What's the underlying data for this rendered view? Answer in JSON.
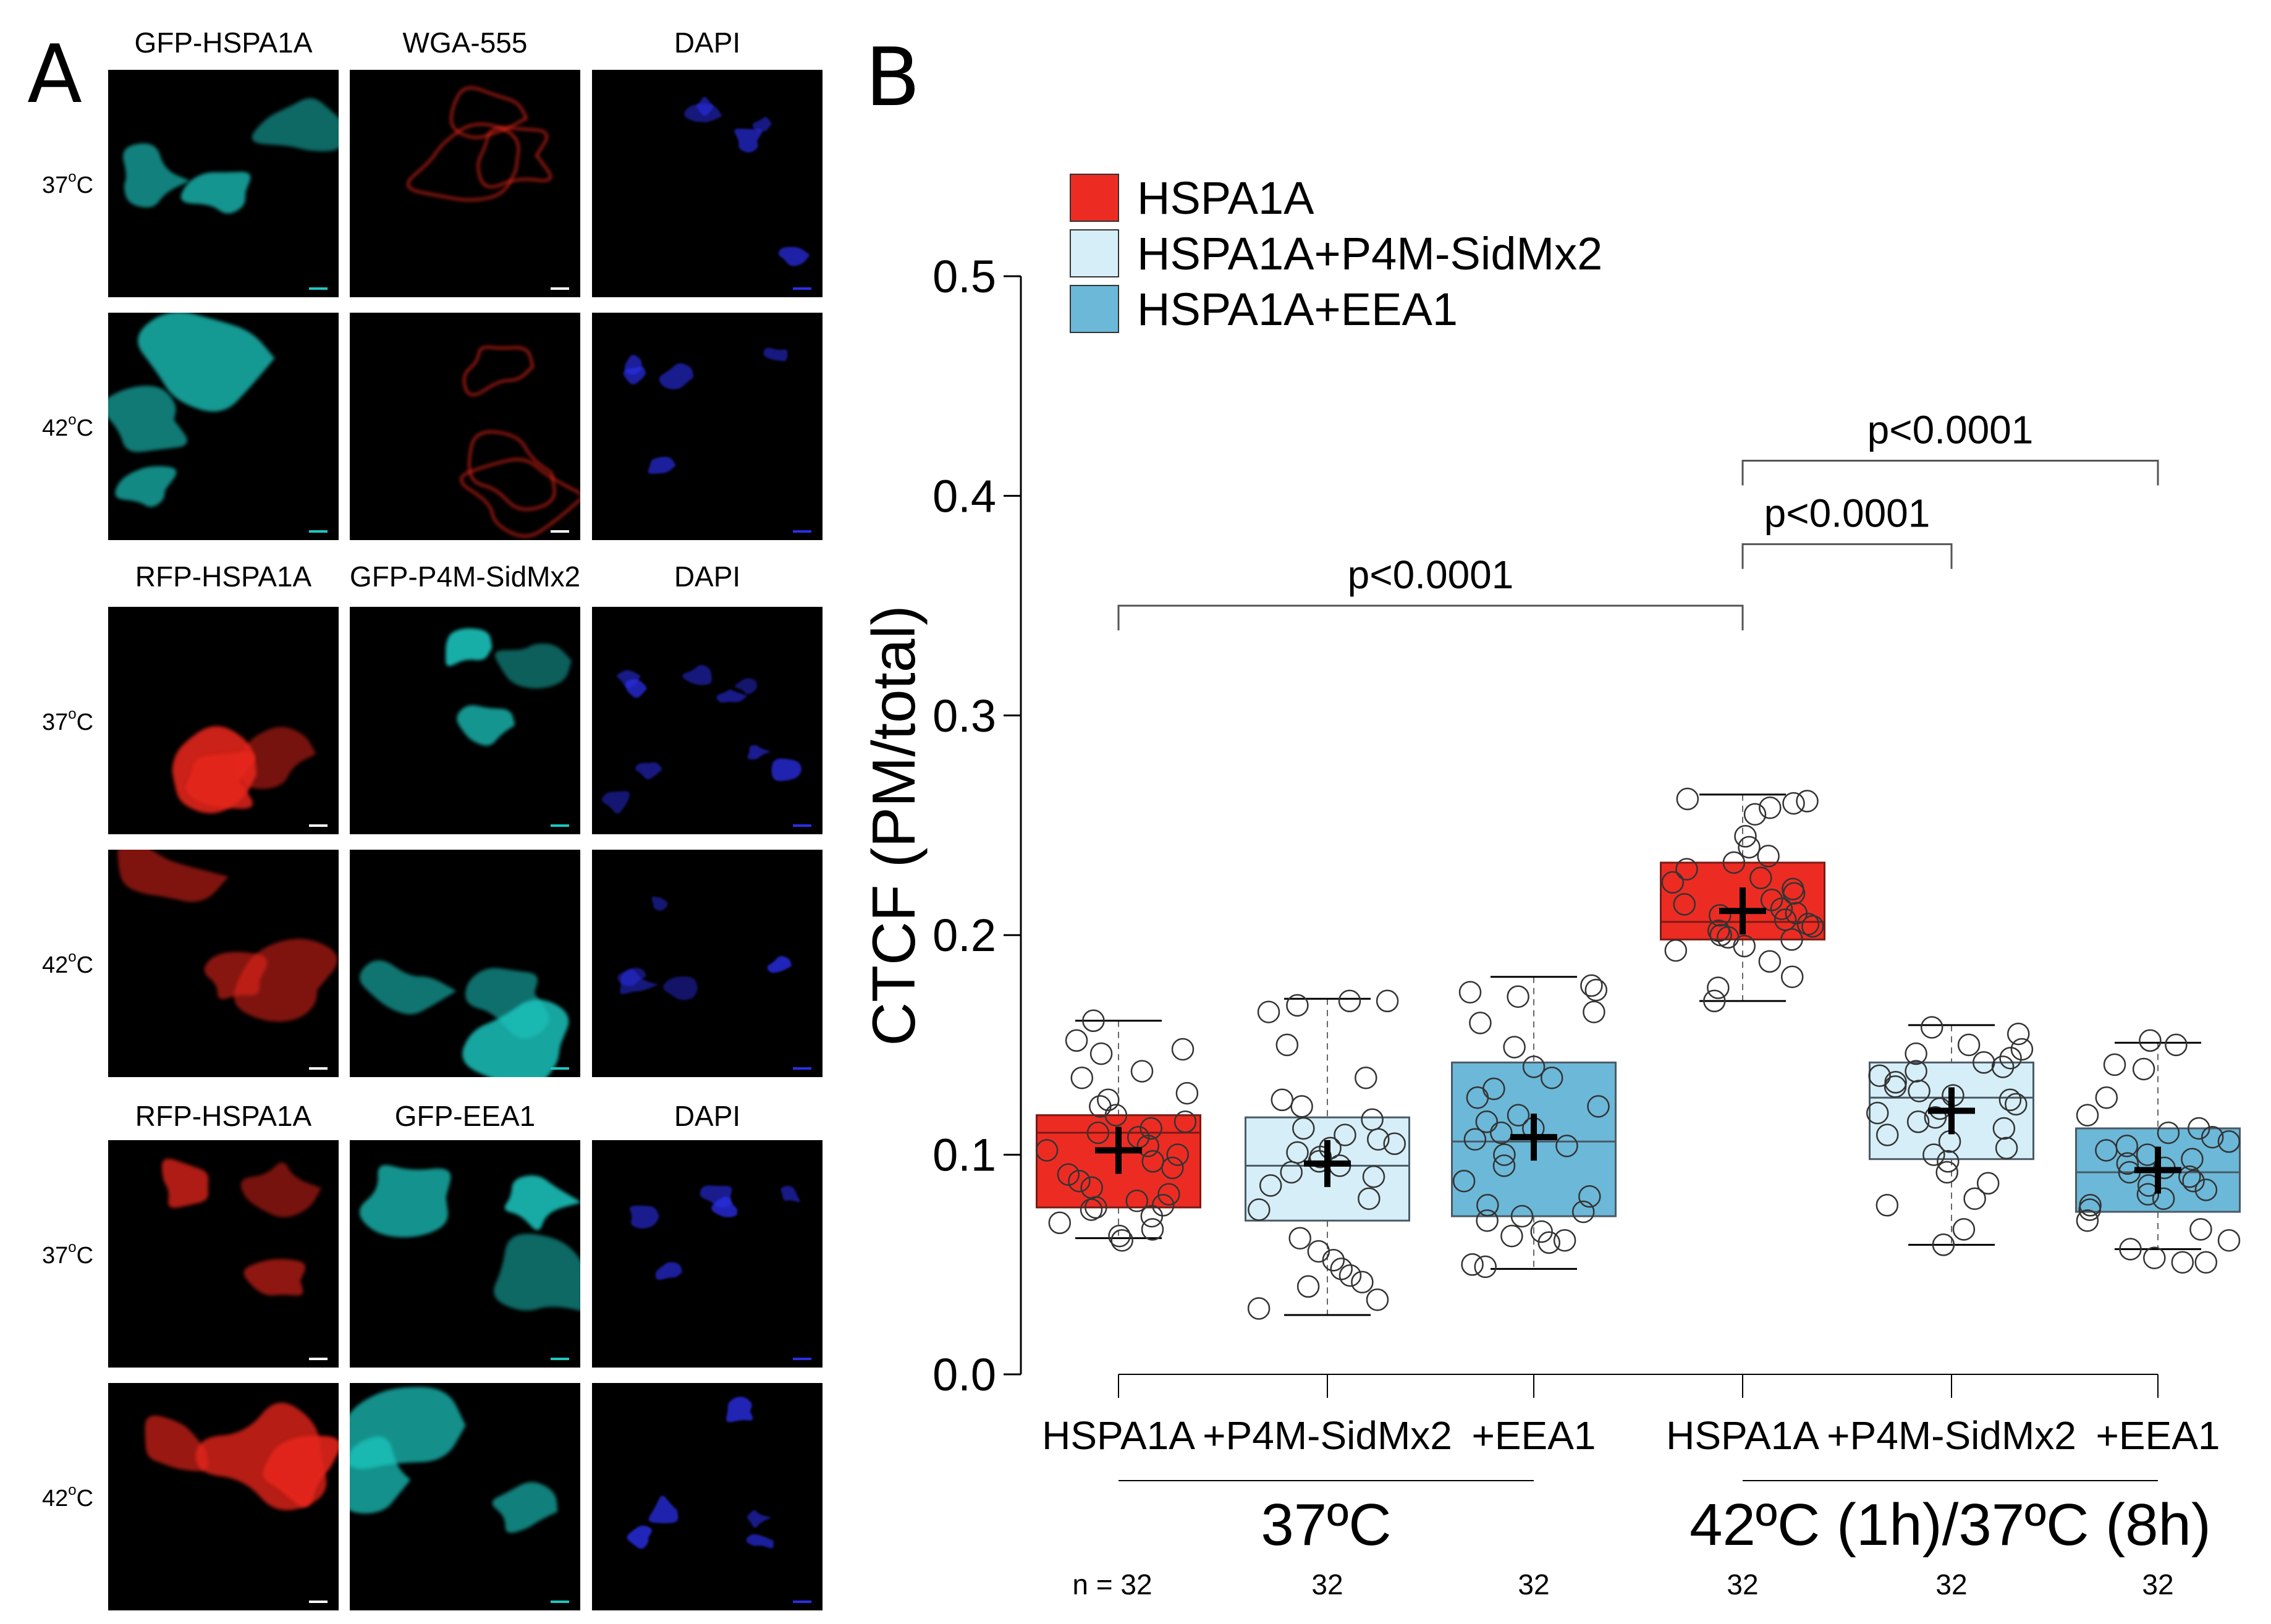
{
  "panel_a": {
    "letter": "A",
    "colors": {
      "cyan": "#1fc7c0",
      "red": "#e8271c",
      "blue": "#2b2ee6"
    },
    "groups": [
      {
        "columns": [
          "GFP-HSPA1A",
          "WGA-555",
          "DAPI"
        ],
        "channel_colors": [
          "cyan",
          "red",
          "blue"
        ],
        "temps": [
          {
            "num": "37",
            "deg": "o",
            "unit": "C"
          },
          {
            "num": "42",
            "deg": "o",
            "unit": "C"
          }
        ]
      },
      {
        "columns": [
          "RFP-HSPA1A",
          "GFP-P4M-SidMx2",
          "DAPI"
        ],
        "channel_colors": [
          "red",
          "cyan",
          "blue"
        ],
        "temps": [
          {
            "num": "37",
            "deg": "o",
            "unit": "C"
          },
          {
            "num": "42",
            "deg": "o",
            "unit": "C"
          }
        ]
      },
      {
        "columns": [
          "RFP-HSPA1A",
          "GFP-EEA1",
          "DAPI"
        ],
        "channel_colors": [
          "red",
          "cyan",
          "blue"
        ],
        "temps": [
          {
            "num": "37",
            "deg": "o",
            "unit": "C"
          },
          {
            "num": "42",
            "deg": "o",
            "unit": "C"
          }
        ]
      }
    ]
  },
  "chart_data": {
    "panel_letter": "B",
    "type": "box",
    "ylabel": "CTCF (PM/total)",
    "ylim": [
      0.0,
      0.5
    ],
    "yticks": [
      "0.0",
      "0.1",
      "0.2",
      "0.3",
      "0.4",
      "0.5"
    ],
    "legend": [
      {
        "name": "HSPA1A",
        "color": "#ec2c23"
      },
      {
        "name": "HSPA1A+P4M-SidMx2",
        "color": "#d6eef7"
      },
      {
        "name": "HSPA1A+EEA1",
        "color": "#6cb8d8"
      }
    ],
    "categories": [
      "HSPA1A",
      "+P4M-SidMx2",
      "+EEA1",
      "HSPA1A",
      "+P4M-SidMx2",
      "+EEA1"
    ],
    "condition_groups": [
      {
        "label": "37ºC",
        "categories": [
          0,
          1,
          2
        ]
      },
      {
        "label": "42ºC (1h)/37ºC (8h)",
        "categories": [
          3,
          4,
          5
        ]
      }
    ],
    "n_labels": [
      "n = 32",
      "32",
      "32",
      "32",
      "32",
      "32"
    ],
    "boxes": [
      {
        "series": 0,
        "min": 0.062,
        "q1": 0.076,
        "median": 0.11,
        "q3": 0.118,
        "max": 0.161,
        "mean": 0.102,
        "points": [
          0.161,
          0.152,
          0.148,
          0.146,
          0.138,
          0.135,
          0.128,
          0.125,
          0.122,
          0.118,
          0.115,
          0.112,
          0.11,
          0.108,
          0.104,
          0.102,
          0.1,
          0.097,
          0.094,
          0.091,
          0.088,
          0.085,
          0.082,
          0.079,
          0.077,
          0.076,
          0.075,
          0.072,
          0.069,
          0.066,
          0.063,
          0.061
        ]
      },
      {
        "series": 1,
        "min": 0.027,
        "q1": 0.07,
        "median": 0.095,
        "q3": 0.117,
        "max": 0.171,
        "mean": 0.096,
        "points": [
          0.17,
          0.17,
          0.168,
          0.165,
          0.15,
          0.135,
          0.125,
          0.122,
          0.116,
          0.112,
          0.109,
          0.107,
          0.105,
          0.103,
          0.101,
          0.099,
          0.097,
          0.095,
          0.092,
          0.09,
          0.086,
          0.08,
          0.075,
          0.062,
          0.056,
          0.052,
          0.048,
          0.045,
          0.042,
          0.04,
          0.034,
          0.03
        ]
      },
      {
        "series": 2,
        "min": 0.048,
        "q1": 0.072,
        "median": 0.106,
        "q3": 0.142,
        "max": 0.181,
        "mean": 0.108,
        "points": [
          0.177,
          0.175,
          0.174,
          0.172,
          0.165,
          0.16,
          0.149,
          0.14,
          0.135,
          0.13,
          0.126,
          0.122,
          0.118,
          0.115,
          0.112,
          0.11,
          0.107,
          0.104,
          0.1,
          0.095,
          0.088,
          0.081,
          0.077,
          0.074,
          0.072,
          0.07,
          0.065,
          0.063,
          0.061,
          0.06,
          0.05,
          0.049
        ]
      },
      {
        "series": 0,
        "min": 0.17,
        "q1": 0.198,
        "median": 0.206,
        "q3": 0.233,
        "max": 0.264,
        "mean": 0.211,
        "points": [
          0.262,
          0.261,
          0.26,
          0.258,
          0.255,
          0.245,
          0.24,
          0.236,
          0.233,
          0.23,
          0.226,
          0.224,
          0.221,
          0.219,
          0.216,
          0.214,
          0.212,
          0.21,
          0.209,
          0.207,
          0.205,
          0.204,
          0.202,
          0.2,
          0.199,
          0.198,
          0.195,
          0.193,
          0.188,
          0.181,
          0.176,
          0.17
        ]
      },
      {
        "series": 1,
        "min": 0.059,
        "q1": 0.098,
        "median": 0.126,
        "q3": 0.142,
        "max": 0.159,
        "mean": 0.12,
        "points": [
          0.158,
          0.155,
          0.15,
          0.148,
          0.146,
          0.144,
          0.142,
          0.14,
          0.138,
          0.136,
          0.133,
          0.131,
          0.129,
          0.127,
          0.125,
          0.123,
          0.121,
          0.119,
          0.117,
          0.115,
          0.112,
          0.109,
          0.106,
          0.103,
          0.1,
          0.097,
          0.092,
          0.087,
          0.08,
          0.077,
          0.066,
          0.059
        ]
      },
      {
        "series": 2,
        "min": 0.057,
        "q1": 0.074,
        "median": 0.092,
        "q3": 0.112,
        "max": 0.151,
        "mean": 0.093,
        "points": [
          0.152,
          0.15,
          0.141,
          0.139,
          0.126,
          0.118,
          0.112,
          0.11,
          0.108,
          0.106,
          0.104,
          0.102,
          0.1,
          0.098,
          0.096,
          0.094,
          0.092,
          0.09,
          0.088,
          0.086,
          0.084,
          0.082,
          0.08,
          0.077,
          0.075,
          0.07,
          0.066,
          0.061,
          0.057,
          0.053,
          0.051,
          0.051
        ]
      }
    ],
    "comparisons": [
      {
        "from": 0,
        "to": 3,
        "y": 0.35,
        "label": "p<0.0001"
      },
      {
        "from": 3,
        "to": 4,
        "y": 0.378,
        "label": "p<0.0001"
      },
      {
        "from": 3,
        "to": 5,
        "y": 0.416,
        "label": "p<0.0001"
      }
    ]
  }
}
